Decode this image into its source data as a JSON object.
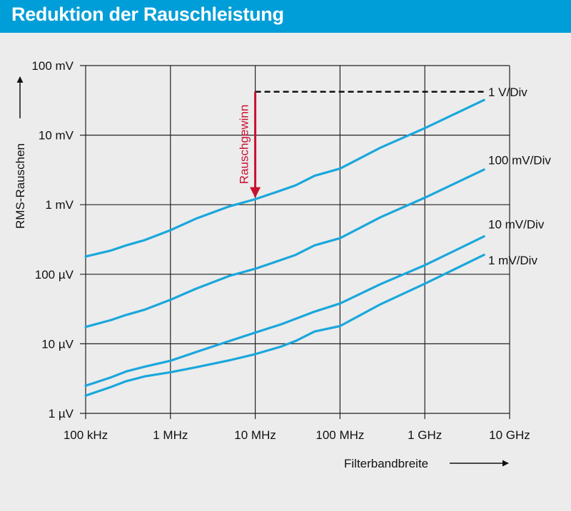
{
  "header": {
    "title": "Reduktion der Rauschleistung"
  },
  "colors": {
    "header_bg": "#009ed8",
    "line": "#1aa7dc",
    "arrow": "#c8102e",
    "grid": "#222222",
    "background": "#ececec"
  },
  "chart_data": {
    "type": "line",
    "title": "Reduktion der Rauschleistung",
    "xlabel": "Filterbandbreite",
    "ylabel": "RMS-Rauschen",
    "x_scale": "log",
    "y_scale": "log",
    "x_unit": "Hz",
    "y_unit": "V",
    "xlim": [
      100000,
      10000000000
    ],
    "ylim": [
      1e-06,
      0.1
    ],
    "grid": true,
    "x_ticks": [
      {
        "value": 100000,
        "label": "100 kHz"
      },
      {
        "value": 1000000,
        "label": "1 MHz"
      },
      {
        "value": 10000000,
        "label": "10 MHz"
      },
      {
        "value": 100000000,
        "label": "100 MHz"
      },
      {
        "value": 1000000000,
        "label": "1 GHz"
      },
      {
        "value": 10000000000,
        "label": "10 GHz"
      }
    ],
    "y_ticks": [
      {
        "value": 1e-06,
        "label": "1 µV"
      },
      {
        "value": 1e-05,
        "label": "10 µV"
      },
      {
        "value": 0.0001,
        "label": "100 µV"
      },
      {
        "value": 0.001,
        "label": "1 mV"
      },
      {
        "value": 0.01,
        "label": "10 mV"
      },
      {
        "value": 0.1,
        "label": "100 mV"
      }
    ],
    "series": [
      {
        "name": "1 V/Div",
        "x": [
          100000,
          200000,
          300000,
          500000,
          1000000,
          2000000,
          5000000,
          10000000,
          20000000,
          30000000,
          50000000,
          100000000,
          300000000,
          1000000000,
          5000000000
        ],
        "y": [
          0.00018,
          0.00022,
          0.00026,
          0.00031,
          0.00043,
          0.00063,
          0.00095,
          0.0012,
          0.0016,
          0.0019,
          0.0026,
          0.0033,
          0.0066,
          0.0126,
          0.032
        ]
      },
      {
        "name": "100 mV/Div",
        "x": [
          100000,
          200000,
          300000,
          500000,
          1000000,
          2000000,
          5000000,
          10000000,
          20000000,
          30000000,
          50000000,
          100000000,
          300000000,
          1000000000,
          5000000000
        ],
        "y": [
          1.75e-05,
          2.2e-05,
          2.6e-05,
          3.1e-05,
          4.3e-05,
          6.2e-05,
          9.5e-05,
          0.00012,
          0.00016,
          0.00019,
          0.00026,
          0.00033,
          0.00066,
          0.00126,
          0.0032
        ]
      },
      {
        "name": "10 mV/Div",
        "x": [
          100000,
          200000,
          300000,
          500000,
          1000000,
          2000000,
          5000000,
          10000000,
          20000000,
          50000000,
          100000000,
          300000000,
          1000000000,
          5000000000
        ],
        "y": [
          2.5e-06,
          3.3e-06,
          4e-06,
          4.7e-06,
          5.7e-06,
          7.6e-06,
          1.1e-05,
          1.45e-05,
          1.9e-05,
          2.9e-05,
          3.8e-05,
          7.2e-05,
          0.000135,
          0.00035
        ]
      },
      {
        "name": "1 mV/Div",
        "x": [
          100000,
          200000,
          300000,
          500000,
          1000000,
          2000000,
          5000000,
          10000000,
          20000000,
          30000000,
          50000000,
          100000000,
          300000000,
          1000000000,
          5000000000
        ],
        "y": [
          1.8e-06,
          2.4e-06,
          2.9e-06,
          3.4e-06,
          3.9e-06,
          4.6e-06,
          5.8e-06,
          7.1e-06,
          9.1e-06,
          1.1e-05,
          1.5e-05,
          1.8e-05,
          3.7e-05,
          7.3e-05,
          0.00019
        ]
      }
    ],
    "annotation": {
      "text": "Rauschgewinn",
      "x": 10000000,
      "from_y": 0.042,
      "to_y": 0.0013
    }
  }
}
